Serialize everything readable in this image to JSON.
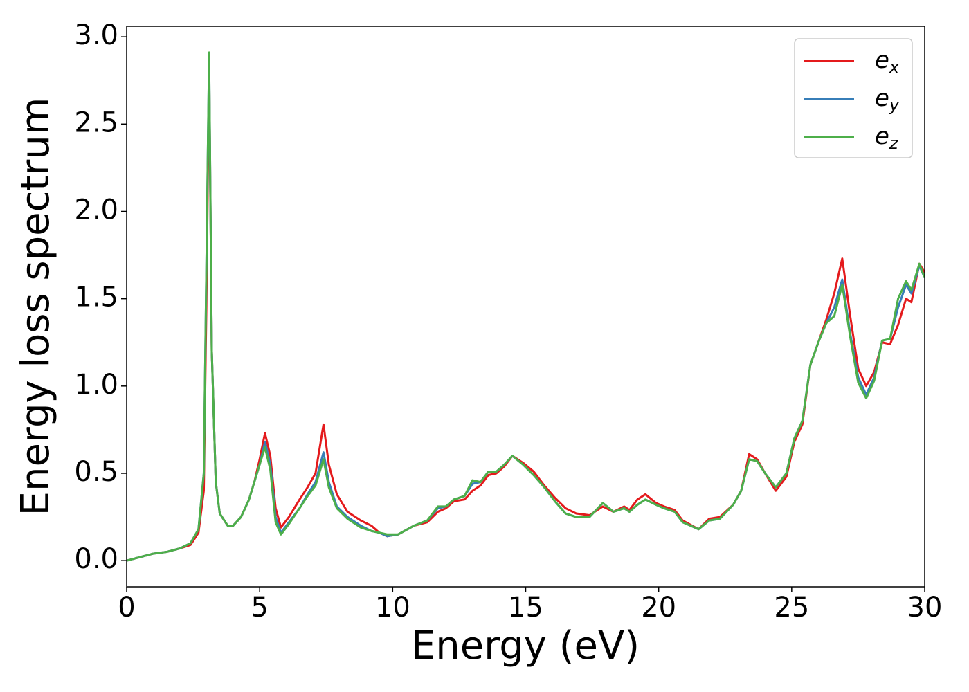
{
  "chart_data": {
    "type": "line",
    "xlabel": "Energy (eV)",
    "ylabel": "Energy loss spectrum",
    "x": [
      0,
      0.5,
      1.0,
      1.5,
      2.0,
      2.4,
      2.7,
      2.9,
      3.0,
      3.1,
      3.2,
      3.35,
      3.5,
      3.8,
      4.0,
      4.3,
      4.6,
      4.8,
      5.0,
      5.2,
      5.4,
      5.6,
      5.8,
      6.1,
      6.5,
      6.8,
      7.1,
      7.4,
      7.6,
      7.9,
      8.3,
      8.8,
      9.2,
      9.5,
      9.8,
      10.2,
      10.8,
      11.3,
      11.7,
      12.0,
      12.3,
      12.7,
      13.0,
      13.3,
      13.6,
      13.9,
      14.2,
      14.5,
      14.9,
      15.3,
      15.7,
      16.1,
      16.5,
      16.9,
      17.4,
      17.9,
      18.3,
      18.7,
      18.9,
      19.2,
      19.5,
      19.9,
      20.2,
      20.6,
      20.9,
      21.5,
      21.9,
      22.3,
      22.8,
      23.1,
      23.4,
      23.7,
      24.0,
      24.4,
      24.8,
      25.1,
      25.4,
      25.7,
      26.0,
      26.3,
      26.6,
      26.9,
      27.2,
      27.5,
      27.8,
      28.1,
      28.4,
      28.7,
      29.0,
      29.3,
      29.5,
      29.8,
      30.0
    ],
    "series": [
      {
        "name": "ex",
        "color": "#e41a1c",
        "values": [
          0,
          0.02,
          0.04,
          0.05,
          0.07,
          0.09,
          0.16,
          0.4,
          1.5,
          2.85,
          1.2,
          0.45,
          0.27,
          0.2,
          0.2,
          0.25,
          0.35,
          0.45,
          0.58,
          0.73,
          0.6,
          0.3,
          0.19,
          0.25,
          0.35,
          0.42,
          0.5,
          0.78,
          0.55,
          0.38,
          0.28,
          0.23,
          0.2,
          0.16,
          0.14,
          0.15,
          0.2,
          0.22,
          0.28,
          0.3,
          0.34,
          0.35,
          0.4,
          0.43,
          0.49,
          0.5,
          0.54,
          0.6,
          0.56,
          0.51,
          0.43,
          0.36,
          0.3,
          0.27,
          0.26,
          0.31,
          0.28,
          0.31,
          0.29,
          0.35,
          0.38,
          0.33,
          0.31,
          0.29,
          0.23,
          0.18,
          0.24,
          0.25,
          0.32,
          0.4,
          0.61,
          0.58,
          0.5,
          0.4,
          0.48,
          0.68,
          0.78,
          1.12,
          1.25,
          1.38,
          1.53,
          1.73,
          1.4,
          1.1,
          1.0,
          1.08,
          1.25,
          1.24,
          1.35,
          1.5,
          1.48,
          1.7,
          1.65
        ]
      },
      {
        "name": "ey",
        "color": "#377eb8",
        "values": [
          0,
          0.02,
          0.04,
          0.05,
          0.07,
          0.1,
          0.18,
          0.5,
          1.7,
          2.9,
          1.2,
          0.45,
          0.27,
          0.2,
          0.2,
          0.25,
          0.35,
          0.45,
          0.55,
          0.68,
          0.55,
          0.25,
          0.16,
          0.22,
          0.3,
          0.38,
          0.45,
          0.62,
          0.45,
          0.31,
          0.25,
          0.2,
          0.17,
          0.16,
          0.14,
          0.15,
          0.2,
          0.23,
          0.3,
          0.31,
          0.35,
          0.37,
          0.44,
          0.45,
          0.51,
          0.51,
          0.55,
          0.6,
          0.55,
          0.49,
          0.42,
          0.34,
          0.27,
          0.25,
          0.25,
          0.33,
          0.28,
          0.3,
          0.28,
          0.32,
          0.35,
          0.32,
          0.3,
          0.28,
          0.22,
          0.18,
          0.23,
          0.24,
          0.32,
          0.4,
          0.58,
          0.57,
          0.5,
          0.42,
          0.5,
          0.7,
          0.8,
          1.12,
          1.25,
          1.36,
          1.45,
          1.61,
          1.3,
          1.05,
          0.95,
          1.05,
          1.26,
          1.27,
          1.45,
          1.58,
          1.53,
          1.69,
          1.62
        ]
      },
      {
        "name": "ez",
        "color": "#4daf4a",
        "values": [
          0,
          0.02,
          0.04,
          0.05,
          0.07,
          0.1,
          0.18,
          0.5,
          1.7,
          2.91,
          1.2,
          0.45,
          0.27,
          0.2,
          0.2,
          0.25,
          0.35,
          0.45,
          0.55,
          0.65,
          0.52,
          0.22,
          0.15,
          0.21,
          0.3,
          0.37,
          0.43,
          0.58,
          0.42,
          0.3,
          0.24,
          0.19,
          0.17,
          0.16,
          0.15,
          0.15,
          0.2,
          0.23,
          0.31,
          0.31,
          0.35,
          0.37,
          0.46,
          0.45,
          0.51,
          0.51,
          0.55,
          0.6,
          0.55,
          0.49,
          0.42,
          0.34,
          0.27,
          0.25,
          0.25,
          0.33,
          0.28,
          0.3,
          0.28,
          0.32,
          0.35,
          0.32,
          0.3,
          0.28,
          0.22,
          0.18,
          0.23,
          0.24,
          0.32,
          0.4,
          0.58,
          0.57,
          0.5,
          0.42,
          0.5,
          0.7,
          0.8,
          1.12,
          1.25,
          1.36,
          1.4,
          1.58,
          1.28,
          1.02,
          0.93,
          1.03,
          1.26,
          1.27,
          1.5,
          1.6,
          1.55,
          1.7,
          1.62
        ]
      }
    ],
    "xlim": [
      0,
      30
    ],
    "xticks": [
      0,
      5,
      10,
      15,
      20,
      25,
      30
    ],
    "ylim": [
      -0.15,
      3.06
    ],
    "yticks": [
      {
        "value": 0,
        "label": "0.0"
      },
      0.5,
      {
        "value": 1,
        "label": "1.0"
      },
      1.5,
      {
        "value": 2,
        "label": "2.0"
      },
      2.5,
      {
        "value": 3,
        "label": "3.0"
      }
    ],
    "grid": false,
    "legend": "upper right"
  }
}
